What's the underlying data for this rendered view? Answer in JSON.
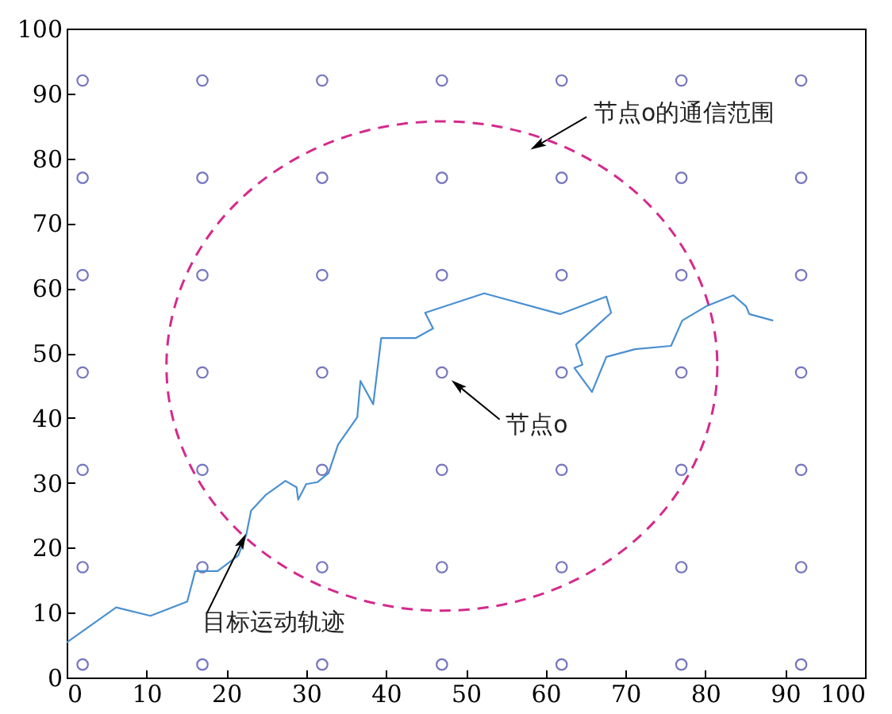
{
  "chart_data": {
    "type": "scatter",
    "grid": false,
    "xlim": [
      0,
      100
    ],
    "ylim": [
      0,
      100
    ],
    "xticks": [
      0,
      10,
      20,
      30,
      40,
      50,
      60,
      70,
      80,
      90,
      100
    ],
    "yticks": [
      0,
      10,
      20,
      30,
      40,
      50,
      60,
      70,
      80,
      90,
      100
    ],
    "series": [
      {
        "marker": "circle",
        "color": "#3c3ca8",
        "x": [
          2,
          2,
          2,
          2,
          2,
          2,
          2,
          17,
          17,
          17,
          17,
          17,
          17,
          17,
          32,
          32,
          32,
          32,
          32,
          32,
          32,
          47,
          47,
          47,
          47,
          47,
          47,
          47,
          62,
          62,
          62,
          62,
          62,
          62,
          62,
          77,
          77,
          77,
          77,
          77,
          77,
          77,
          92,
          92,
          92,
          92,
          92,
          92,
          92
        ],
        "values": [
          2,
          17,
          32,
          47,
          62,
          77,
          92,
          2,
          17,
          32,
          47,
          62,
          77,
          92,
          2,
          17,
          32,
          47,
          62,
          77,
          92,
          2,
          17,
          32,
          47,
          62,
          77,
          92,
          2,
          17,
          32,
          47,
          62,
          77,
          92,
          2,
          17,
          32,
          47,
          62,
          77,
          92,
          2,
          17,
          32,
          47,
          62,
          77,
          92
        ]
      },
      {
        "type": "line",
        "line_style": "solid",
        "color": "#4a90d0",
        "x": [
          0,
          6.2,
          10.5,
          15.1,
          16.1,
          18.9,
          21.5,
          22.5,
          23.1,
          24.9,
          27.4,
          28.8,
          29,
          30,
          31.4,
          32.8,
          34,
          36.4,
          36.8,
          38.4,
          39.4,
          43.7,
          45.9,
          44.9,
          52.3,
          61.8,
          67.6,
          68.2,
          63.8,
          64.6,
          63.6,
          65.8,
          67.6,
          71.2,
          75.7,
          77.1,
          80.1,
          83.5,
          85.1,
          85.5,
          88.5
        ],
        "values": [
          5.4,
          10.8,
          9.5,
          11.7,
          16.4,
          16.4,
          18.8,
          22,
          25.7,
          28.1,
          30.3,
          29.3,
          27.4,
          29.8,
          30.1,
          31.5,
          35.9,
          40.1,
          45.7,
          42.1,
          52.3,
          52.3,
          53.8,
          56.2,
          59.2,
          56,
          58.7,
          56.2,
          51.3,
          48.2,
          47.7,
          44,
          49.4,
          50.6,
          51.1,
          55,
          57.2,
          58.9,
          57.2,
          56,
          55
        ]
      }
    ],
    "annotations": [
      {
        "text": "节点o的通信范围",
        "x": 59,
        "y": 82
      },
      {
        "text": "节点o",
        "x": 49,
        "y": 45
      },
      {
        "text": "目标运动轨迹",
        "x": 22,
        "y": 21
      }
    ]
  }
}
